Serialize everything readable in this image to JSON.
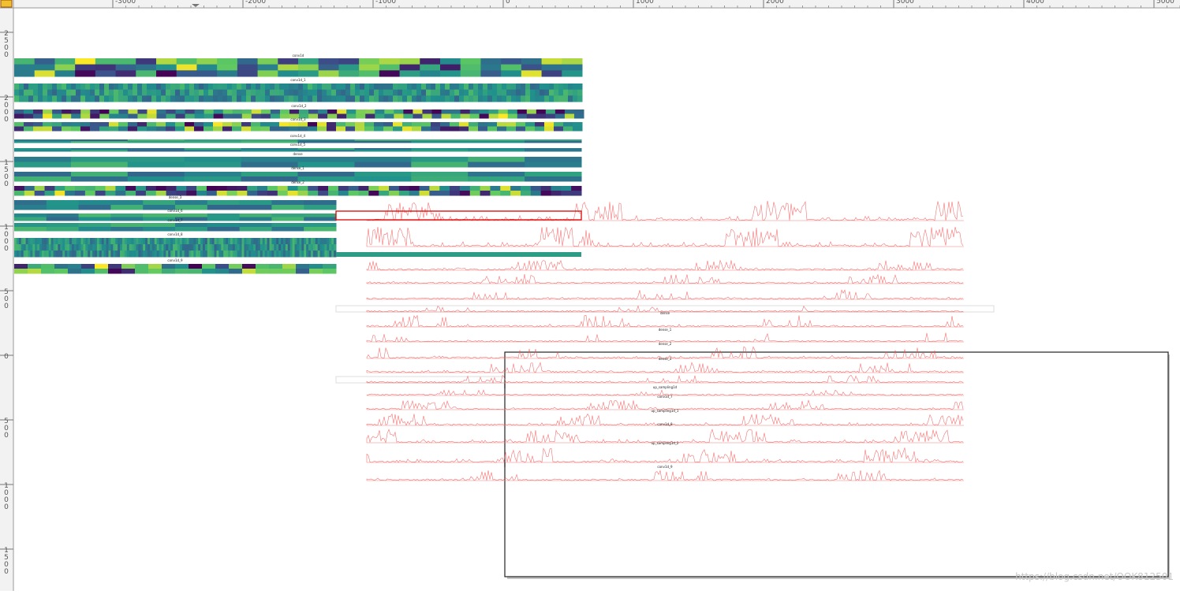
{
  "ruler": {
    "top_labels": [
      "-3000",
      "-2000",
      "-1000",
      "0",
      "1000",
      "2000",
      "3000",
      "4000",
      "5000"
    ],
    "left_labels": [
      "2500",
      "2000",
      "1500",
      "1000",
      "500",
      "0",
      "500",
      "1000",
      "1500"
    ]
  },
  "left_panels": [
    {
      "title": "conv1d"
    },
    {
      "title": "conv1d_1"
    },
    {
      "title": "conv1d_2"
    },
    {
      "title": "conv1d_3"
    },
    {
      "title": "conv1d_4"
    },
    {
      "title": "conv1d_5"
    },
    {
      "title": "dense"
    },
    {
      "title": "dense_1"
    },
    {
      "title": "dense_2"
    },
    {
      "title": "dense_3"
    },
    {
      "title": "conv1d_6"
    },
    {
      "title": "conv1d_7"
    },
    {
      "title": "conv1d_8"
    },
    {
      "title": "conv1d_9"
    }
  ],
  "right_panels": [
    {
      "title": "dense"
    },
    {
      "title": "dense_1"
    },
    {
      "title": "dense_2"
    },
    {
      "title": "dense_3"
    },
    {
      "title": "up_sampling1d"
    },
    {
      "title": "conv1d_7"
    },
    {
      "title": "up_sampling1d_1"
    },
    {
      "title": "conv1d_8"
    },
    {
      "title": "up_sampling1d_2"
    },
    {
      "title": "conv1d_9"
    }
  ],
  "watermark": "https://blog.csdn.net/OOK812501"
}
